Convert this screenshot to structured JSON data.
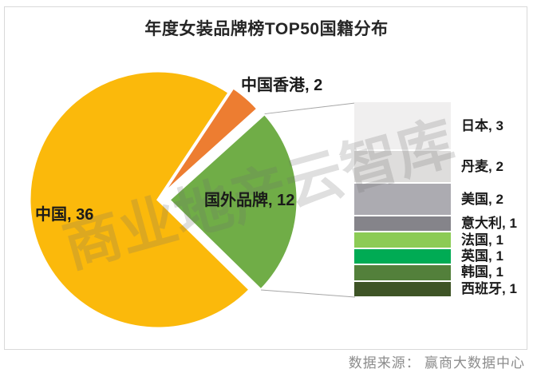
{
  "title": "年度女装品牌榜TOP50国籍分布",
  "watermark": "商业地产云智库",
  "source": "数据来源： 赢商大数据中心",
  "chart_data": {
    "type": "pie",
    "subtype": "bar-of-pie",
    "title": "年度女装品牌榜TOP50国籍分布",
    "total": 50,
    "label_format": "category, count",
    "legend": "none",
    "slices": [
      {
        "id": "china",
        "label": "中国",
        "value": 36,
        "display": "中国, 36",
        "color": "#FBB90B"
      },
      {
        "id": "hong-kong-china",
        "label": "中国香港",
        "value": 2,
        "display": "中国香港, 2",
        "color": "#ED7D31"
      },
      {
        "id": "foreign-brands",
        "label": "国外品牌",
        "value": 12,
        "display": "国外品牌, 12",
        "color": "#70AD47",
        "expanded_to_bar": true
      }
    ],
    "secondary_bar": {
      "parent_slice": "国外品牌",
      "total": 12,
      "segments": [
        {
          "id": "japan",
          "label": "日本",
          "value": 3,
          "display": "日本, 3",
          "color": "#F0EFEF"
        },
        {
          "id": "denmark",
          "label": "丹麦",
          "value": 2,
          "display": "丹麦, 2",
          "color": "#DEDDDC"
        },
        {
          "id": "usa",
          "label": "美国",
          "value": 2,
          "display": "美国, 2",
          "color": "#ACABB1"
        },
        {
          "id": "italy",
          "label": "意大利",
          "value": 1,
          "display": "意大利, 1",
          "color": "#85848A"
        },
        {
          "id": "france",
          "label": "法国",
          "value": 1,
          "display": "法国, 1",
          "color": "#8CCB55"
        },
        {
          "id": "uk",
          "label": "英国",
          "value": 1,
          "display": "英国, 1",
          "color": "#00AB54"
        },
        {
          "id": "south-korea",
          "label": "韩国",
          "value": 1,
          "display": "韩国, 1",
          "color": "#53803B"
        },
        {
          "id": "spain",
          "label": "西班牙",
          "value": 1,
          "display": "西班牙, 1",
          "color": "#3E5426"
        }
      ]
    }
  }
}
